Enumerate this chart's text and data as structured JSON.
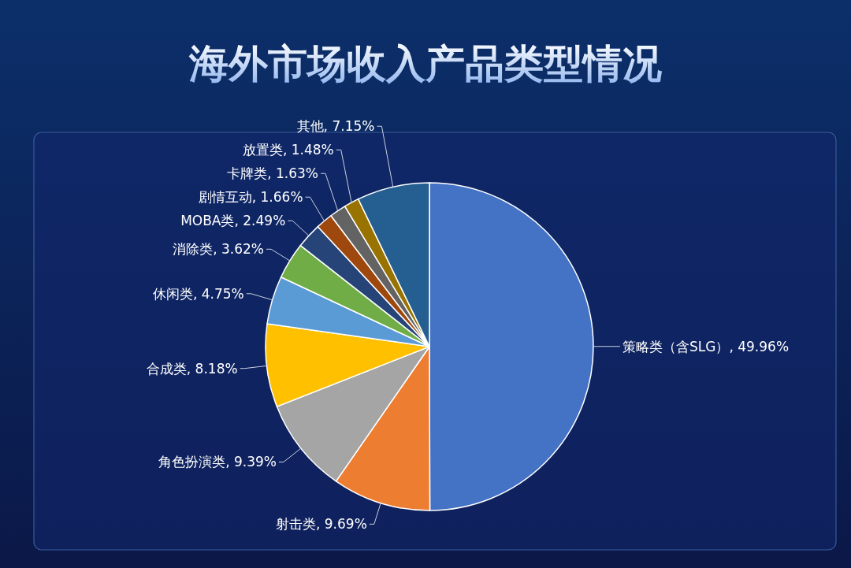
{
  "chart_data": {
    "type": "pie",
    "title": "海外市场收入产品类型情况",
    "categories": [
      "策略类（含SLG）",
      "射击类",
      "角色扮演类",
      "合成类",
      "休闲类",
      "消除类",
      "MOBA类",
      "剧情互动",
      "卡牌类",
      "放置类",
      "其他"
    ],
    "values": [
      49.96,
      9.69,
      9.39,
      8.18,
      4.75,
      3.62,
      2.49,
      1.66,
      1.63,
      1.48,
      7.15
    ],
    "value_labels": [
      ", 49.96%",
      ", 9.69%",
      ", 9.39%",
      ", 8.18%",
      ", 4.75%",
      ", 3.62%",
      ", 2.49%",
      ", 1.66%",
      ", 1.63%",
      ", 1.48%",
      ", 7.15%"
    ],
    "colors": [
      "#4472c4",
      "#ed7d31",
      "#a5a5a5",
      "#ffc000",
      "#5b9bd5",
      "#70ad47",
      "#264478",
      "#9e480e",
      "#636363",
      "#997300",
      "#255e91"
    ]
  }
}
